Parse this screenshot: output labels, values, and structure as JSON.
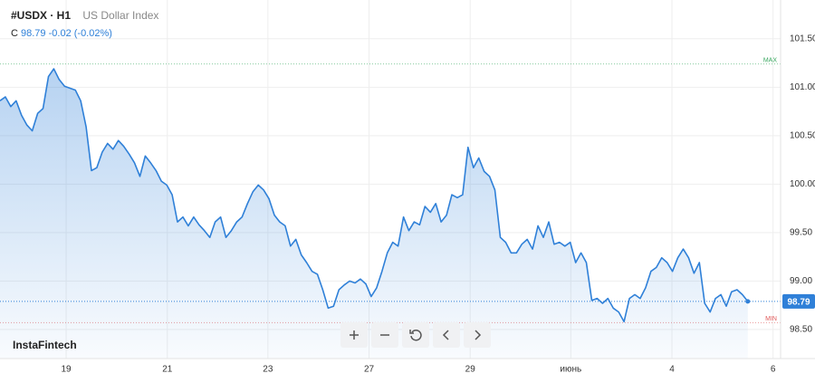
{
  "chart_data": {
    "type": "line",
    "symbol": "#USDX · H1",
    "name": "US Dollar Index",
    "close_label": "C",
    "close": 98.79,
    "change": "-0.02 (-0.02%)",
    "brand": "InstaFintech",
    "color": "#2f80d8",
    "x": [
      0,
      1,
      2,
      3,
      4,
      5,
      6,
      7,
      8,
      9,
      10,
      11,
      12,
      13,
      14,
      15,
      16,
      17,
      18,
      19,
      20,
      21,
      22,
      23,
      24,
      25,
      26,
      27,
      28,
      29,
      30,
      31,
      32,
      33,
      34,
      35,
      36,
      37,
      38,
      39,
      40,
      41,
      42,
      43,
      44,
      45,
      46,
      47,
      48,
      49,
      50,
      51,
      52,
      53,
      54,
      55,
      56,
      57,
      58,
      59,
      60,
      61,
      62,
      63,
      64,
      65,
      66,
      67,
      68,
      69,
      70,
      71,
      72,
      73,
      74,
      75,
      76,
      77,
      78,
      79,
      80,
      81,
      82,
      83,
      84,
      85,
      86,
      87,
      88,
      89,
      90,
      91,
      92,
      93,
      94,
      95,
      96,
      97,
      98,
      99,
      100,
      101,
      102,
      103,
      104,
      105,
      106,
      107,
      108,
      109,
      110,
      111,
      112,
      113,
      114,
      115,
      116,
      117,
      118,
      119,
      120,
      121,
      122,
      123,
      124,
      125,
      126,
      127,
      128,
      129,
      130,
      131,
      132,
      133,
      134,
      135,
      136,
      137,
      138,
      139
    ],
    "values": [
      100.86,
      100.9,
      100.8,
      100.86,
      100.71,
      100.61,
      100.55,
      100.73,
      100.78,
      101.11,
      101.19,
      101.08,
      101.01,
      100.99,
      100.97,
      100.86,
      100.59,
      100.14,
      100.17,
      100.33,
      100.42,
      100.36,
      100.45,
      100.39,
      100.31,
      100.22,
      100.08,
      100.29,
      100.22,
      100.14,
      100.03,
      99.99,
      99.89,
      99.61,
      99.66,
      99.57,
      99.66,
      99.58,
      99.52,
      99.45,
      99.61,
      99.66,
      99.45,
      99.52,
      99.61,
      99.66,
      99.8,
      99.92,
      99.99,
      99.94,
      99.85,
      99.68,
      99.61,
      99.57,
      99.36,
      99.43,
      99.27,
      99.19,
      99.1,
      99.07,
      98.91,
      98.72,
      98.74,
      98.91,
      98.96,
      99.0,
      98.98,
      99.02,
      98.97,
      98.84,
      98.93,
      99.1,
      99.29,
      99.4,
      99.36,
      99.66,
      99.52,
      99.61,
      99.58,
      99.77,
      99.71,
      99.8,
      99.61,
      99.68,
      99.89,
      99.86,
      99.89,
      100.38,
      100.17,
      100.27,
      100.13,
      100.08,
      99.94,
      99.45,
      99.4,
      99.29,
      99.29,
      99.38,
      99.43,
      99.33,
      99.57,
      99.45,
      99.61,
      99.38,
      99.4,
      99.36,
      99.4,
      99.19,
      99.29,
      99.19,
      98.8,
      98.82,
      98.77,
      98.82,
      98.72,
      98.68,
      98.58,
      98.82,
      98.86,
      98.82,
      98.93,
      99.1,
      99.14,
      99.24,
      99.19,
      99.1,
      99.24,
      99.33,
      99.24,
      99.08,
      99.19,
      98.77,
      98.68,
      98.82,
      98.86,
      98.74,
      98.89,
      98.91,
      98.86,
      98.79
    ],
    "xlim": [
      0,
      145.1
    ],
    "xticks": [
      {
        "value": 12.3,
        "label": "19"
      },
      {
        "value": 31.1,
        "label": "21"
      },
      {
        "value": 49.8,
        "label": "23"
      },
      {
        "value": 68.6,
        "label": "27"
      },
      {
        "value": 87.4,
        "label": "29"
      },
      {
        "value": 106.1,
        "label": "июнь"
      },
      {
        "value": 124.9,
        "label": "4"
      },
      {
        "value": 143.7,
        "label": "6"
      }
    ],
    "ylim": [
      98.2,
      101.9
    ],
    "yticks": [
      {
        "value": 98.5,
        "label": "98.50"
      },
      {
        "value": 99,
        "label": "99.00"
      },
      {
        "value": 99.5,
        "label": "99.50"
      },
      {
        "value": 100,
        "label": "100.00"
      },
      {
        "value": 100.5,
        "label": "100.50"
      },
      {
        "value": 101,
        "label": "101.00"
      },
      {
        "value": 101.5,
        "label": "101.50"
      }
    ],
    "grid": true,
    "max_line": {
      "label": "MAX",
      "value": 101.24,
      "color": "#3aa860"
    },
    "min_line": {
      "label": "MIN",
      "value": 98.57,
      "color": "#e05a5a"
    }
  }
}
